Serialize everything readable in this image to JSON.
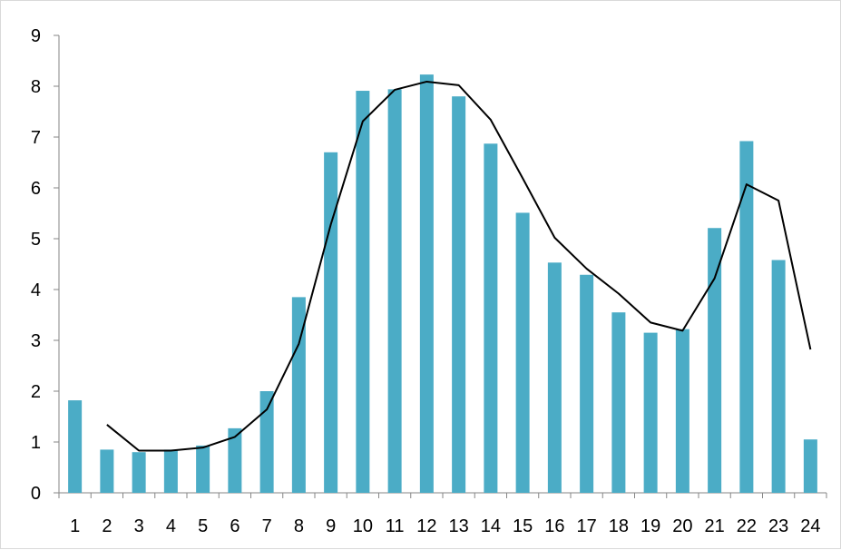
{
  "chart_data": {
    "type": "bar",
    "title": "",
    "xlabel": "",
    "ylabel": "",
    "ylim": [
      0,
      9
    ],
    "yticks": [
      0,
      1,
      2,
      3,
      4,
      5,
      6,
      7,
      8,
      9
    ],
    "categories": [
      "1",
      "2",
      "3",
      "4",
      "5",
      "6",
      "7",
      "8",
      "9",
      "10",
      "11",
      "12",
      "13",
      "14",
      "15",
      "16",
      "17",
      "18",
      "19",
      "20",
      "21",
      "22",
      "23",
      "24"
    ],
    "values": [
      1.82,
      0.85,
      0.8,
      0.85,
      0.93,
      1.27,
      2.0,
      3.85,
      6.7,
      7.91,
      7.94,
      8.23,
      7.8,
      6.87,
      5.51,
      4.53,
      4.29,
      3.55,
      3.15,
      3.22,
      5.21,
      6.92,
      4.58,
      1.05
    ],
    "bar_color": "#4BACC6",
    "trendline": {
      "type": "line",
      "color": "#000000",
      "start_category": "2",
      "values": [
        1.34,
        0.83,
        0.83,
        0.89,
        1.1,
        1.64,
        2.93,
        5.28,
        7.31,
        7.93,
        8.09,
        8.02,
        7.34,
        6.19,
        5.02,
        4.41,
        3.92,
        3.35,
        3.19,
        4.22,
        6.07,
        5.75,
        2.82
      ]
    },
    "grid": false,
    "legend": "none"
  }
}
